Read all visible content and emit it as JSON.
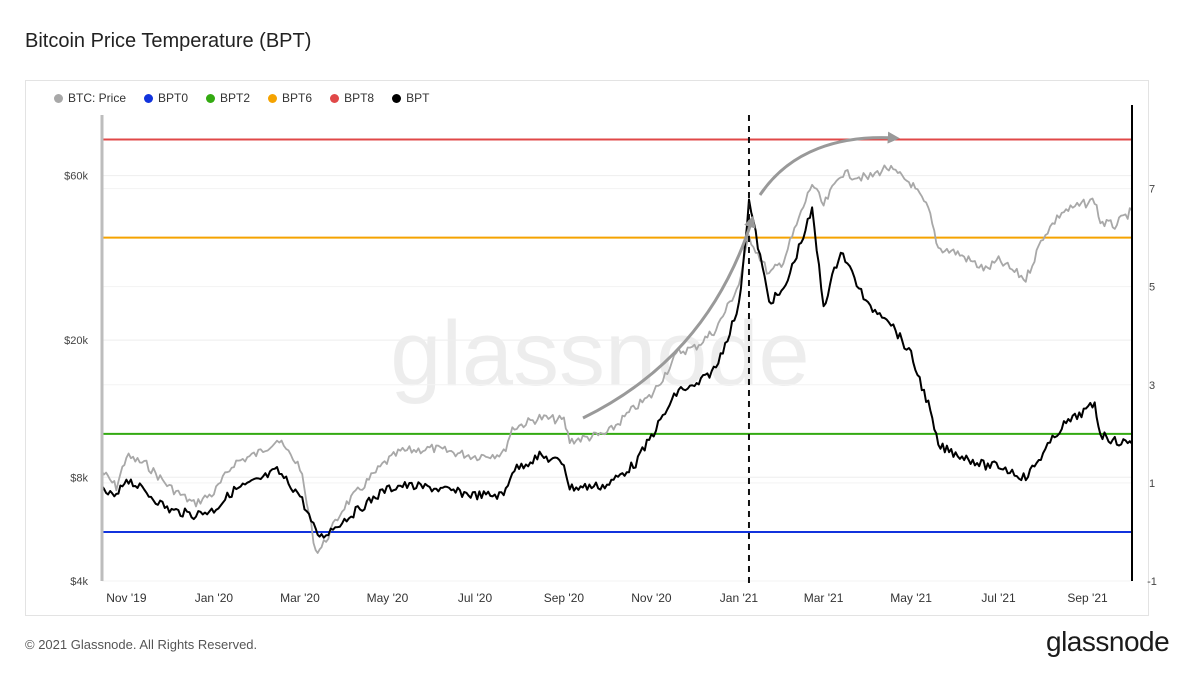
{
  "page": {
    "title": "Bitcoin Price Temperature (BPT)",
    "copyright": "© 2021 Glassnode. All Rights Reserved.",
    "brand": "glassnode",
    "watermark": "glassnode"
  },
  "chart_data": {
    "type": "line",
    "title": "Bitcoin Price Temperature (BPT)",
    "x_range": [
      "2019-10-15",
      "2021-10-02"
    ],
    "x_ticks": [
      "Nov '19",
      "Jan '20",
      "Mar '20",
      "May '20",
      "Jul '20",
      "Sep '20",
      "Nov '20",
      "Jan '21",
      "Mar '21",
      "May '21",
      "Jul '21",
      "Sep '21"
    ],
    "y_left": {
      "scale": "log",
      "range": [
        4000,
        90000
      ],
      "ticks": [
        "$4k",
        "$8k",
        "$20k",
        "$60k"
      ],
      "tick_values": [
        4000,
        8000,
        20000,
        60000
      ]
    },
    "y_right": {
      "scale": "linear",
      "range": [
        -1,
        8.5
      ],
      "ticks": [
        "-1",
        "1",
        "3",
        "5",
        "7"
      ],
      "tick_values": [
        -1,
        1,
        3,
        5,
        7
      ]
    },
    "legend": [
      "BTC: Price",
      "BPT0",
      "BPT2",
      "BPT6",
      "BPT8",
      "BPT"
    ],
    "colors": {
      "price": "#a8a8a8",
      "bpt0": "#1133dd",
      "bpt2": "#33aa11",
      "bpt6": "#f5a300",
      "bpt8": "#e04848",
      "bpt": "#000000"
    },
    "levels": [
      {
        "name": "BPT0",
        "value": 0,
        "color": "#1133dd"
      },
      {
        "name": "BPT2",
        "value": 2,
        "color": "#33aa11"
      },
      {
        "name": "BPT6",
        "value": 6,
        "color": "#f5a300"
      },
      {
        "name": "BPT8",
        "value": 8,
        "color": "#e04848"
      }
    ],
    "series": [
      {
        "name": "BTC: Price",
        "axis": "left",
        "color": "#a8a8a8",
        "points": [
          [
            "2019-10-15",
            8300
          ],
          [
            "2019-10-25",
            7500
          ],
          [
            "2019-11-01",
            9200
          ],
          [
            "2019-11-15",
            8700
          ],
          [
            "2019-12-01",
            7500
          ],
          [
            "2019-12-18",
            6700
          ],
          [
            "2020-01-01",
            7200
          ],
          [
            "2020-01-15",
            8800
          ],
          [
            "2020-02-01",
            9400
          ],
          [
            "2020-02-14",
            10300
          ],
          [
            "2020-03-01",
            8600
          ],
          [
            "2020-03-12",
            4900
          ],
          [
            "2020-03-16",
            5000
          ],
          [
            "2020-04-01",
            6600
          ],
          [
            "2020-04-29",
            8800
          ],
          [
            "2020-05-10",
            9500
          ],
          [
            "2020-06-01",
            9700
          ],
          [
            "2020-07-01",
            9200
          ],
          [
            "2020-07-21",
            9400
          ],
          [
            "2020-07-27",
            11100
          ],
          [
            "2020-08-15",
            11900
          ],
          [
            "2020-09-01",
            11700
          ],
          [
            "2020-09-05",
            10200
          ],
          [
            "2020-10-01",
            10700
          ],
          [
            "2020-10-21",
            12800
          ],
          [
            "2020-11-01",
            13800
          ],
          [
            "2020-11-20",
            18500
          ],
          [
            "2020-12-01",
            19000
          ],
          [
            "2020-12-16",
            21500
          ],
          [
            "2021-01-01",
            29000
          ],
          [
            "2021-01-08",
            40000
          ],
          [
            "2021-01-22",
            31000
          ],
          [
            "2021-02-01",
            34000
          ],
          [
            "2021-02-21",
            57000
          ],
          [
            "2021-03-01",
            49000
          ],
          [
            "2021-03-13",
            61000
          ],
          [
            "2021-04-01",
            59000
          ],
          [
            "2021-04-14",
            63500
          ],
          [
            "2021-05-01",
            57000
          ],
          [
            "2021-05-13",
            48000
          ],
          [
            "2021-05-20",
            37000
          ],
          [
            "2021-06-01",
            36000
          ],
          [
            "2021-06-22",
            32000
          ],
          [
            "2021-07-01",
            34000
          ],
          [
            "2021-07-20",
            30000
          ],
          [
            "2021-08-01",
            40000
          ],
          [
            "2021-08-14",
            47000
          ],
          [
            "2021-09-06",
            51000
          ],
          [
            "2021-09-10",
            44000
          ],
          [
            "2021-09-20",
            43000
          ],
          [
            "2021-10-02",
            47500
          ]
        ]
      },
      {
        "name": "BPT",
        "axis": "right",
        "color": "#000000",
        "points": [
          [
            "2019-10-15",
            0.85
          ],
          [
            "2019-10-25",
            0.7
          ],
          [
            "2019-11-01",
            1.1
          ],
          [
            "2019-11-15",
            0.8
          ],
          [
            "2019-12-01",
            0.45
          ],
          [
            "2019-12-18",
            0.35
          ],
          [
            "2020-01-01",
            0.45
          ],
          [
            "2020-01-15",
            0.85
          ],
          [
            "2020-02-01",
            1.05
          ],
          [
            "2020-02-14",
            1.25
          ],
          [
            "2020-03-01",
            0.75
          ],
          [
            "2020-03-12",
            0.0
          ],
          [
            "2020-03-16",
            -0.1
          ],
          [
            "2020-04-01",
            0.25
          ],
          [
            "2020-04-29",
            0.85
          ],
          [
            "2020-05-10",
            0.95
          ],
          [
            "2020-06-01",
            0.9
          ],
          [
            "2020-07-01",
            0.75
          ],
          [
            "2020-07-21",
            0.75
          ],
          [
            "2020-07-27",
            1.25
          ],
          [
            "2020-08-15",
            1.55
          ],
          [
            "2020-09-01",
            1.4
          ],
          [
            "2020-09-05",
            0.9
          ],
          [
            "2020-10-01",
            0.95
          ],
          [
            "2020-10-21",
            1.4
          ],
          [
            "2020-11-01",
            1.95
          ],
          [
            "2020-11-20",
            2.9
          ],
          [
            "2020-12-01",
            2.95
          ],
          [
            "2020-12-16",
            3.35
          ],
          [
            "2021-01-01",
            4.6
          ],
          [
            "2021-01-08",
            6.75
          ],
          [
            "2021-01-22",
            4.7
          ],
          [
            "2021-02-01",
            4.9
          ],
          [
            "2021-02-21",
            6.55
          ],
          [
            "2021-03-01",
            4.6
          ],
          [
            "2021-03-13",
            5.75
          ],
          [
            "2021-04-01",
            4.6
          ],
          [
            "2021-04-14",
            4.4
          ],
          [
            "2021-05-01",
            3.6
          ],
          [
            "2021-05-13",
            2.6
          ],
          [
            "2021-05-20",
            1.75
          ],
          [
            "2021-06-01",
            1.6
          ],
          [
            "2021-06-22",
            1.35
          ],
          [
            "2021-07-01",
            1.35
          ],
          [
            "2021-07-20",
            1.1
          ],
          [
            "2021-08-01",
            1.6
          ],
          [
            "2021-08-14",
            2.15
          ],
          [
            "2021-09-06",
            2.6
          ],
          [
            "2021-09-10",
            2.0
          ],
          [
            "2021-09-20",
            1.85
          ],
          [
            "2021-10-02",
            1.8
          ]
        ]
      }
    ],
    "annotations": {
      "vertical_dashed_line": "2021-01-08",
      "arrows": [
        "curved arrow from Sep '20 to Jan '21",
        "curved arrow from Jan '21 to Apr '21"
      ]
    },
    "grid": true
  }
}
